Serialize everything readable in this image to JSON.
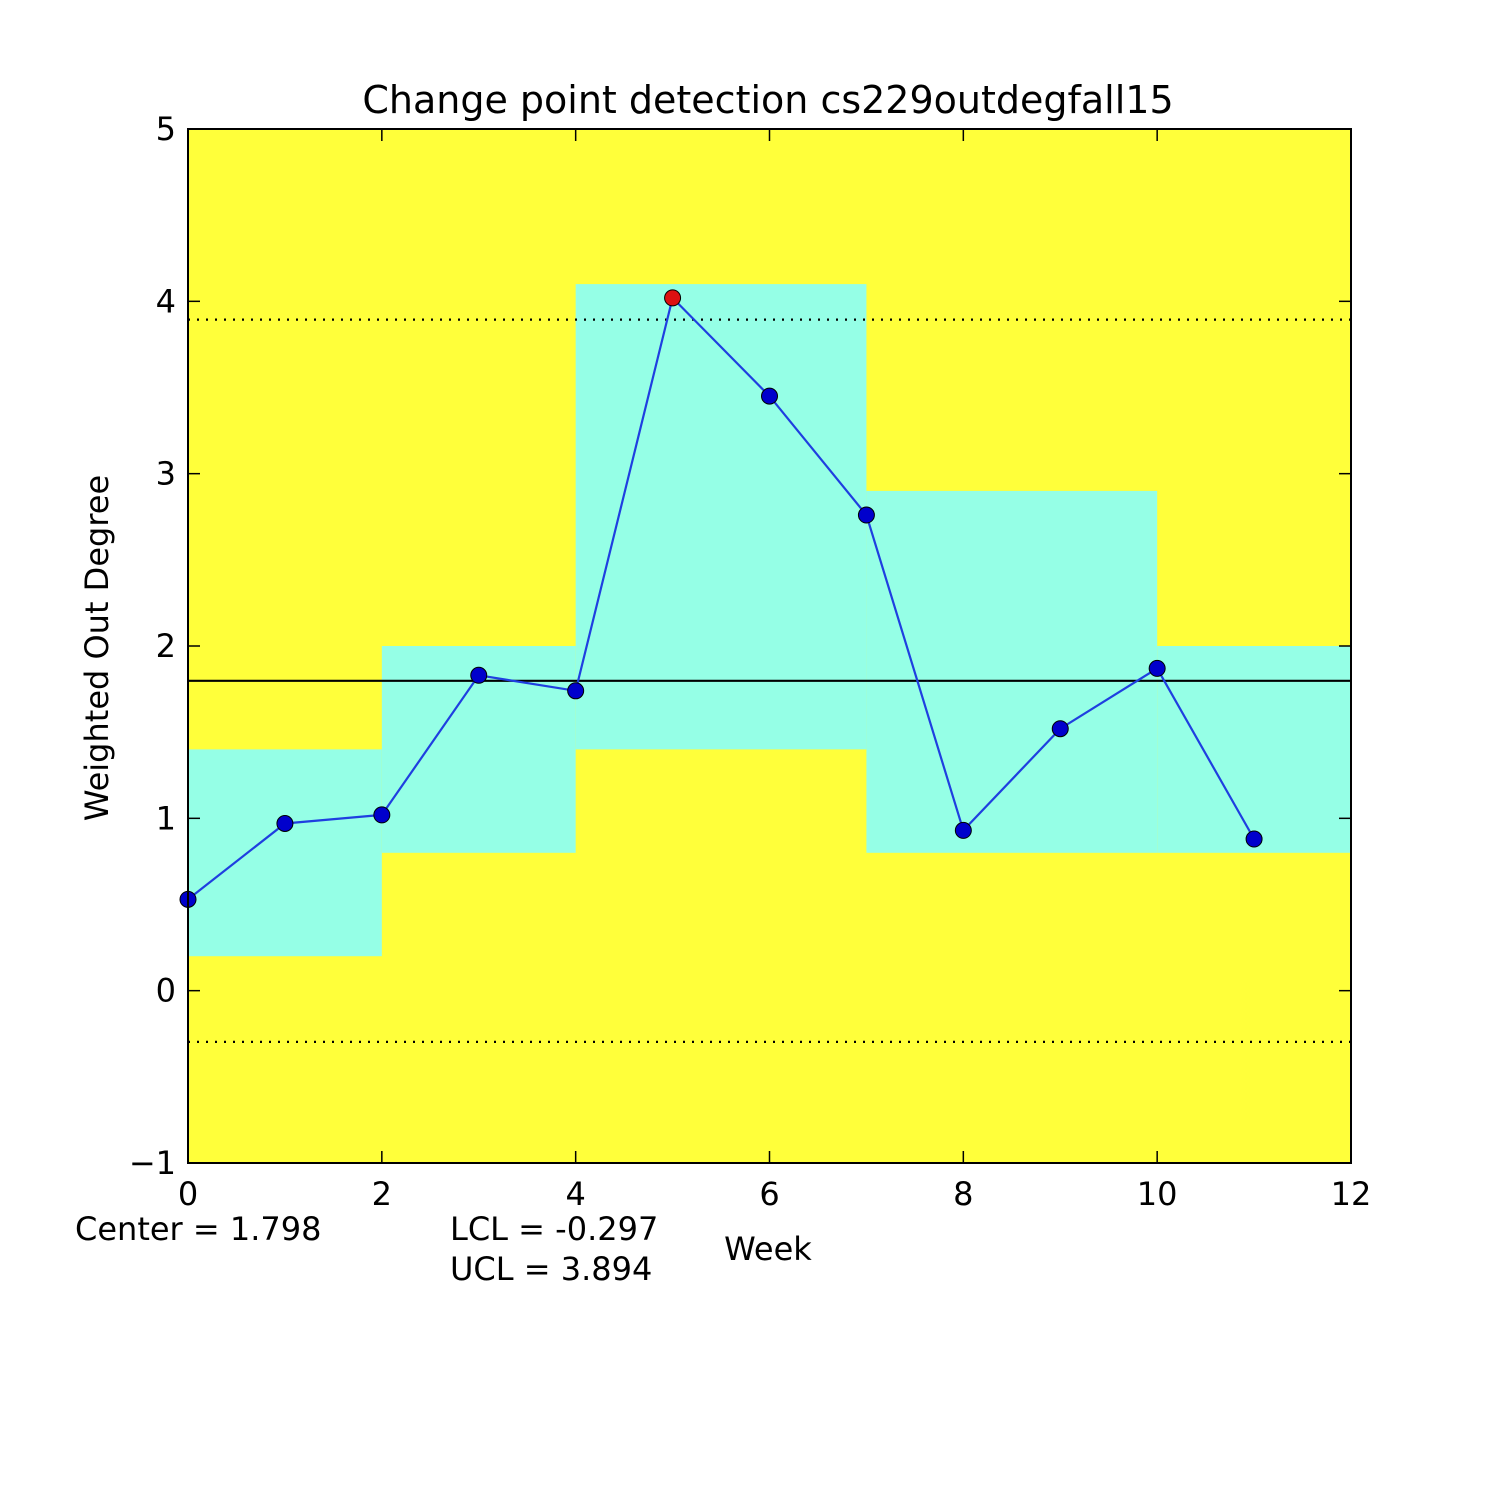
{
  "chart_data": {
    "type": "line",
    "title": "Change point detection cs229outdegfall15",
    "xlabel": "Week",
    "ylabel": "Weighted Out Degree",
    "xlim": [
      0,
      12
    ],
    "ylim": [
      -1,
      5
    ],
    "x_ticks": [
      0,
      2,
      4,
      6,
      8,
      10,
      12
    ],
    "y_ticks": [
      -1,
      0,
      1,
      2,
      3,
      4,
      5
    ],
    "series": [
      {
        "x": [
          0,
          1,
          2,
          3,
          4,
          5,
          6,
          7,
          8,
          9,
          10,
          11
        ],
        "values": [
          0.53,
          0.97,
          1.02,
          1.83,
          1.74,
          4.02,
          3.45,
          2.76,
          0.93,
          1.52,
          1.87,
          0.88
        ],
        "color": "#1f3fe0",
        "marker_color": "#0000cc",
        "highlight_index": 5,
        "highlight_color": "#dd1111"
      }
    ],
    "center_line": 1.798,
    "lcl_line": -0.297,
    "ucl_line": 3.894,
    "bands": [
      {
        "x0": 0,
        "x1": 2,
        "low": 0.2,
        "high": 1.4
      },
      {
        "x0": 2,
        "x1": 4,
        "low": 0.8,
        "high": 2.0
      },
      {
        "x0": 4,
        "x1": 7,
        "low": 1.4,
        "high": 4.1
      },
      {
        "x0": 7,
        "x1": 10,
        "low": 0.8,
        "high": 2.9
      },
      {
        "x0": 10,
        "x1": 12,
        "low": 0.8,
        "high": 2.0
      }
    ],
    "background_color": "#ffff3a",
    "band_color": "#95ffe6",
    "grid": false,
    "legend": "none",
    "annotations": {
      "center": "Center = 1.798",
      "lcl": "LCL = -0.297",
      "ucl": "UCL = 3.894"
    }
  }
}
